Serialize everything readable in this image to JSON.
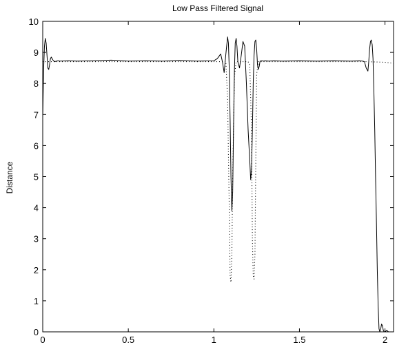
{
  "chart_data": {
    "type": "line",
    "title": "Low Pass Filtered Signal",
    "xlabel": "",
    "ylabel": "Distance",
    "xlim": [
      0,
      2.05
    ],
    "ylim": [
      0,
      10
    ],
    "xticks": [
      0,
      0.5,
      1,
      1.5,
      2
    ],
    "xtick_labels": [
      "0",
      "0.5",
      "1",
      "1.5",
      "2"
    ],
    "yticks": [
      0,
      1,
      2,
      3,
      4,
      5,
      6,
      7,
      8,
      9,
      10
    ],
    "ytick_labels": [
      "0",
      "1",
      "2",
      "3",
      "4",
      "5",
      "6",
      "7",
      "8",
      "9",
      "10"
    ],
    "grid": false,
    "legend": "none",
    "series": [
      {
        "style": "solid",
        "color": "#000000",
        "x": [
          0,
          0.005,
          0.01,
          0.015,
          0.02,
          0.025,
          0.03,
          0.035,
          0.04,
          0.045,
          0.05,
          0.06,
          0.07,
          0.08,
          0.09,
          0.1,
          0.15,
          0.2,
          0.3,
          0.4,
          0.5,
          0.6,
          0.7,
          0.8,
          0.9,
          1.0,
          1.02,
          1.04,
          1.05,
          1.06,
          1.07,
          1.08,
          1.085,
          1.09,
          1.095,
          1.1,
          1.105,
          1.11,
          1.115,
          1.12,
          1.125,
          1.13,
          1.135,
          1.14,
          1.15,
          1.16,
          1.17,
          1.18,
          1.19,
          1.2,
          1.21,
          1.215,
          1.22,
          1.225,
          1.23,
          1.235,
          1.24,
          1.245,
          1.25,
          1.255,
          1.26,
          1.265,
          1.27,
          1.28,
          1.29,
          1.3,
          1.32,
          1.35,
          1.4,
          1.5,
          1.6,
          1.7,
          1.8,
          1.85,
          1.87,
          1.88,
          1.89,
          1.9,
          1.905,
          1.91,
          1.915,
          1.92,
          1.925,
          1.93,
          1.935,
          1.94,
          1.945,
          1.95,
          1.955,
          1.96,
          1.965,
          1.97,
          1.975,
          1.98,
          1.985,
          1.99,
          1.995,
          2.0,
          2.01,
          2.02,
          2.03,
          2.04,
          2.05
        ],
        "y": [
          6.9,
          8.4,
          9.2,
          9.45,
          9.3,
          8.9,
          8.5,
          8.45,
          8.6,
          8.8,
          8.85,
          8.75,
          8.7,
          8.72,
          8.73,
          8.72,
          8.73,
          8.72,
          8.73,
          8.75,
          8.72,
          8.73,
          8.72,
          8.74,
          8.72,
          8.73,
          8.8,
          8.95,
          8.7,
          8.35,
          8.95,
          9.5,
          9.3,
          8.5,
          6.8,
          5.0,
          3.9,
          4.5,
          6.5,
          8.4,
          9.3,
          9.45,
          9.2,
          8.7,
          8.5,
          8.9,
          9.35,
          9.2,
          8.0,
          6.5,
          5.5,
          4.9,
          5.2,
          6.5,
          8.0,
          8.9,
          9.35,
          9.4,
          9.1,
          8.6,
          8.45,
          8.55,
          8.72,
          8.73,
          8.72,
          8.73,
          8.72,
          8.73,
          8.72,
          8.73,
          8.72,
          8.73,
          8.72,
          8.73,
          8.72,
          8.7,
          8.5,
          8.4,
          8.7,
          9.1,
          9.35,
          9.4,
          9.25,
          8.8,
          7.8,
          6.5,
          5.0,
          3.5,
          2.0,
          0.8,
          0.1,
          -0.05,
          0.1,
          0.25,
          0.2,
          0.05,
          -0.05,
          0.0,
          0.05,
          0.0,
          0.0,
          0.0,
          0.0
        ]
      },
      {
        "style": "dotted",
        "color": "#000000",
        "x": [
          0,
          0.05,
          0.1,
          0.3,
          0.5,
          0.7,
          0.9,
          1.0,
          1.05,
          1.07,
          1.08,
          1.09,
          1.095,
          1.1,
          1.105,
          1.11,
          1.12,
          1.13,
          1.15,
          1.17,
          1.2,
          1.21,
          1.22,
          1.225,
          1.23,
          1.235,
          1.24,
          1.245,
          1.25,
          1.26,
          1.27,
          1.3,
          1.5,
          1.7,
          1.9,
          2.0,
          2.05
        ],
        "y": [
          8.7,
          8.7,
          8.7,
          8.7,
          8.7,
          8.7,
          8.7,
          8.7,
          8.7,
          8.7,
          7.5,
          4.0,
          1.8,
          1.6,
          2.5,
          5.0,
          8.2,
          8.7,
          8.7,
          8.7,
          8.7,
          8.6,
          6.5,
          3.0,
          1.8,
          1.7,
          2.5,
          5.5,
          8.3,
          8.7,
          8.7,
          8.7,
          8.7,
          8.7,
          8.7,
          8.68,
          8.65
        ]
      }
    ]
  }
}
